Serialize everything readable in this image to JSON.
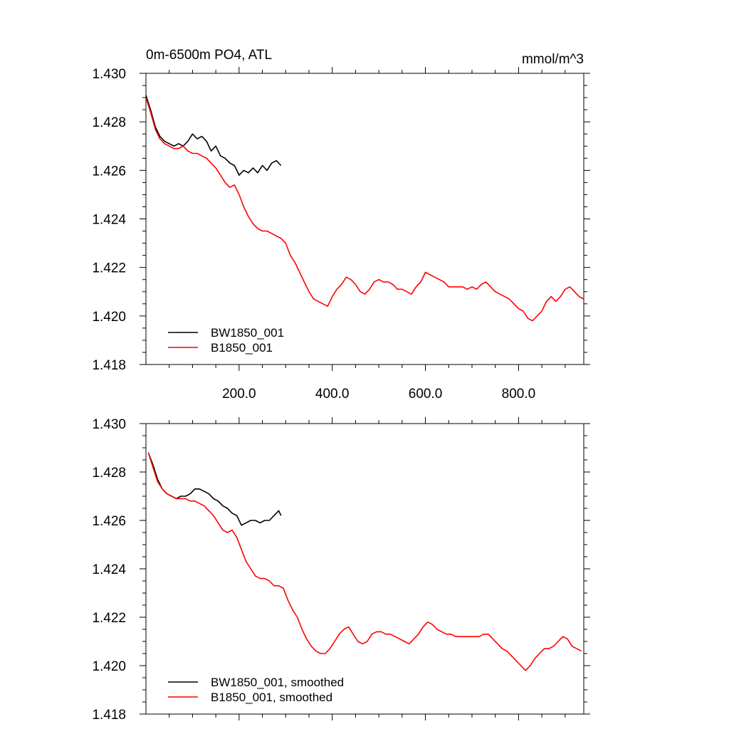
{
  "chart_data": [
    {
      "type": "line",
      "title": "0m-6500m PO4, ATL",
      "units": "mmol/m^3",
      "xlabel": "",
      "ylabel": "",
      "xlim": [
        0,
        940
      ],
      "ylim": [
        1.418,
        1.43
      ],
      "x_ticks": [
        200,
        400,
        600,
        800
      ],
      "x_tick_labels": [
        "200.0",
        "400.0",
        "600.0",
        "800.0"
      ],
      "y_ticks": [
        1.418,
        1.42,
        1.422,
        1.424,
        1.426,
        1.428,
        1.43
      ],
      "y_tick_labels": [
        "1.418",
        "1.420",
        "1.422",
        "1.424",
        "1.426",
        "1.428",
        "1.430"
      ],
      "grid": false,
      "legend_position": "bottom-left",
      "series": [
        {
          "name": "BW1850_001",
          "color": "#000000",
          "x": [
            0,
            10,
            20,
            30,
            40,
            50,
            60,
            70,
            80,
            90,
            100,
            110,
            120,
            130,
            140,
            150,
            160,
            170,
            180,
            190,
            200,
            210,
            220,
            230,
            240,
            250,
            260,
            270,
            280,
            290
          ],
          "values": [
            1.4291,
            1.4285,
            1.4278,
            1.4274,
            1.4272,
            1.4271,
            1.427,
            1.4271,
            1.427,
            1.4272,
            1.4275,
            1.4273,
            1.4274,
            1.4272,
            1.4268,
            1.427,
            1.4266,
            1.4265,
            1.4263,
            1.4262,
            1.4258,
            1.426,
            1.4259,
            1.4261,
            1.4259,
            1.4262,
            1.426,
            1.4263,
            1.4264,
            1.4262
          ]
        },
        {
          "name": "B1850_001",
          "color": "#ff0000",
          "x": [
            0,
            10,
            20,
            30,
            40,
            50,
            60,
            70,
            80,
            90,
            100,
            110,
            120,
            130,
            140,
            150,
            160,
            170,
            180,
            190,
            200,
            210,
            220,
            230,
            240,
            250,
            260,
            270,
            280,
            290,
            300,
            310,
            320,
            330,
            340,
            350,
            360,
            370,
            380,
            390,
            400,
            410,
            420,
            430,
            440,
            450,
            460,
            470,
            480,
            490,
            500,
            510,
            520,
            530,
            540,
            550,
            560,
            570,
            580,
            590,
            600,
            610,
            620,
            630,
            640,
            650,
            660,
            670,
            680,
            690,
            700,
            710,
            720,
            730,
            740,
            750,
            760,
            770,
            780,
            790,
            800,
            810,
            820,
            830,
            840,
            850,
            860,
            870,
            880,
            890,
            900,
            910,
            920,
            930,
            940
          ],
          "values": [
            1.429,
            1.4284,
            1.4277,
            1.4273,
            1.4271,
            1.427,
            1.4269,
            1.4269,
            1.427,
            1.4268,
            1.4267,
            1.4267,
            1.4266,
            1.4265,
            1.4263,
            1.4261,
            1.4258,
            1.4255,
            1.4253,
            1.4254,
            1.425,
            1.4245,
            1.4241,
            1.4238,
            1.4236,
            1.4235,
            1.4235,
            1.4234,
            1.4233,
            1.4232,
            1.423,
            1.4225,
            1.4222,
            1.4218,
            1.4214,
            1.421,
            1.4207,
            1.4206,
            1.4205,
            1.4204,
            1.4208,
            1.4211,
            1.4213,
            1.4216,
            1.4215,
            1.4213,
            1.421,
            1.4209,
            1.4211,
            1.4214,
            1.4215,
            1.4214,
            1.4214,
            1.4213,
            1.4211,
            1.4211,
            1.421,
            1.4209,
            1.4212,
            1.4214,
            1.4218,
            1.4217,
            1.4216,
            1.4215,
            1.4214,
            1.4212,
            1.4212,
            1.4212,
            1.4212,
            1.4211,
            1.4212,
            1.4211,
            1.4213,
            1.4214,
            1.4212,
            1.421,
            1.4209,
            1.4208,
            1.4207,
            1.4205,
            1.4203,
            1.4202,
            1.4199,
            1.4198,
            1.42,
            1.4202,
            1.4206,
            1.4208,
            1.4206,
            1.4208,
            1.4211,
            1.4212,
            1.421,
            1.4208,
            1.4207
          ]
        }
      ]
    },
    {
      "type": "line",
      "title": "",
      "xlabel": "",
      "ylabel": "",
      "xlim": [
        0,
        940
      ],
      "ylim": [
        1.418,
        1.43
      ],
      "x_ticks": [
        200,
        400,
        600,
        800
      ],
      "x_tick_labels": [],
      "y_ticks": [
        1.418,
        1.42,
        1.422,
        1.424,
        1.426,
        1.428,
        1.43
      ],
      "y_tick_labels": [
        "1.418",
        "1.420",
        "1.422",
        "1.424",
        "1.426",
        "1.428",
        "1.430"
      ],
      "grid": false,
      "legend_position": "bottom-left",
      "series": [
        {
          "name": "BW1850_001, smoothed",
          "color": "#000000",
          "x": [
            5,
            15,
            25,
            35,
            45,
            55,
            65,
            75,
            85,
            95,
            105,
            115,
            125,
            135,
            145,
            155,
            165,
            175,
            185,
            195,
            205,
            215,
            225,
            235,
            245,
            255,
            265,
            275,
            285,
            290
          ],
          "values": [
            1.4288,
            1.4283,
            1.4277,
            1.4273,
            1.4271,
            1.427,
            1.4269,
            1.427,
            1.427,
            1.4271,
            1.4273,
            1.4273,
            1.4272,
            1.4271,
            1.4269,
            1.4268,
            1.4266,
            1.4265,
            1.4263,
            1.4262,
            1.4258,
            1.4259,
            1.426,
            1.426,
            1.4259,
            1.426,
            1.426,
            1.4262,
            1.4264,
            1.4262
          ]
        },
        {
          "name": "B1850_001, smoothed",
          "color": "#ff0000",
          "x": [
            5,
            15,
            25,
            35,
            45,
            55,
            65,
            75,
            85,
            95,
            105,
            115,
            125,
            135,
            145,
            155,
            165,
            175,
            185,
            195,
            205,
            215,
            225,
            235,
            245,
            255,
            265,
            275,
            285,
            295,
            305,
            315,
            325,
            335,
            345,
            355,
            365,
            375,
            385,
            395,
            405,
            415,
            425,
            435,
            445,
            455,
            465,
            475,
            485,
            495,
            505,
            515,
            525,
            535,
            545,
            555,
            565,
            575,
            585,
            595,
            605,
            615,
            625,
            635,
            645,
            655,
            665,
            675,
            685,
            695,
            705,
            715,
            725,
            735,
            745,
            755,
            765,
            775,
            785,
            795,
            805,
            815,
            825,
            835,
            845,
            855,
            865,
            875,
            885,
            895,
            905,
            915,
            925,
            935
          ],
          "values": [
            1.4288,
            1.4282,
            1.4276,
            1.4273,
            1.4271,
            1.427,
            1.4269,
            1.4269,
            1.4269,
            1.4268,
            1.4268,
            1.4267,
            1.4266,
            1.4264,
            1.4262,
            1.4259,
            1.4256,
            1.4255,
            1.4256,
            1.4253,
            1.4248,
            1.4243,
            1.424,
            1.4237,
            1.4236,
            1.4236,
            1.4235,
            1.4233,
            1.4233,
            1.4232,
            1.4227,
            1.4223,
            1.422,
            1.4215,
            1.4211,
            1.4208,
            1.4206,
            1.4205,
            1.4205,
            1.4207,
            1.421,
            1.4213,
            1.4215,
            1.4216,
            1.4213,
            1.421,
            1.4209,
            1.421,
            1.4213,
            1.4214,
            1.4214,
            1.4213,
            1.4213,
            1.4212,
            1.4211,
            1.421,
            1.4209,
            1.4211,
            1.4213,
            1.4216,
            1.4218,
            1.4217,
            1.4215,
            1.4214,
            1.4213,
            1.4213,
            1.4212,
            1.4212,
            1.4212,
            1.4212,
            1.4212,
            1.4212,
            1.4213,
            1.4213,
            1.4211,
            1.4209,
            1.4207,
            1.4206,
            1.4204,
            1.4202,
            1.42,
            1.4198,
            1.42,
            1.4203,
            1.4205,
            1.4207,
            1.4207,
            1.4208,
            1.421,
            1.4212,
            1.4211,
            1.4208,
            1.4207,
            1.4206
          ]
        }
      ]
    }
  ]
}
